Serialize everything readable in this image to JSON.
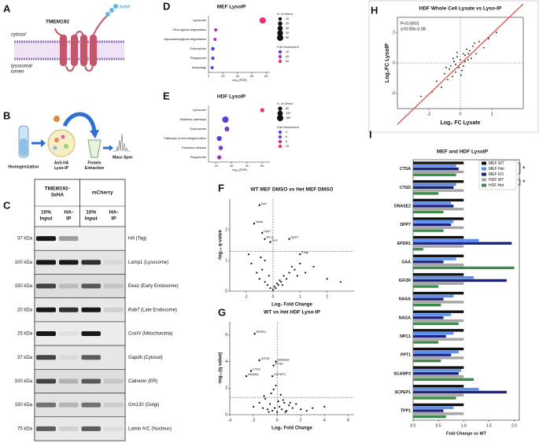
{
  "panel_labels": [
    "A",
    "B",
    "C",
    "D",
    "E",
    "F",
    "G",
    "H",
    "I"
  ],
  "schematic": {
    "protein": "TMEM192",
    "tag": "3xHA",
    "cytosol": "cytosol",
    "lumen": [
      "lysosomal",
      "lumen"
    ]
  },
  "workflow": {
    "steps": [
      [
        "Homogenization"
      ],
      [
        "Anti-HA",
        "Lyso-IP"
      ],
      [
        "Protein",
        "Extraction"
      ],
      [
        "Mass Spec"
      ]
    ]
  },
  "blot": {
    "groups": [
      [
        "TMEM192-",
        "3xHA"
      ],
      [
        "mCherry"
      ]
    ],
    "lanes": [
      [
        "10%",
        "Input"
      ],
      [
        "HA-",
        "IP"
      ],
      [
        "10%",
        "Input"
      ],
      [
        "HA-",
        "IP"
      ]
    ],
    "rows": [
      {
        "kda": "37 kDa",
        "label": "HA (Tag)"
      },
      {
        "kda": "100 kDa",
        "label": "Lamp1 (Lysosome)"
      },
      {
        "kda": "150 kDa",
        "label": "Eea1 (Early Endosome)"
      },
      {
        "kda": "20 kDa",
        "label": "Rab7 (Late Endosome)"
      },
      {
        "kda": "25 kDa",
        "label": "CoxIV (Mitochondria)"
      },
      {
        "kda": "37 kDa",
        "label": "Gapdh (Cytosol)"
      },
      {
        "kda": "100 kDa",
        "label": "Calnexin (ER)"
      },
      {
        "kda": "150 kDa",
        "label": "Gm130 (Golgi)"
      },
      {
        "kda": "75 kDa",
        "label": "Lamin A/C (Nucleus)"
      }
    ]
  },
  "chart_data": [
    {
      "type": "dot",
      "title": "MEF LysoIP",
      "categories": [
        "Lysosome",
        "Other glycan degradation",
        "Glycosaminoglycan degradation",
        "Endocytosis",
        "Phagosome",
        "Autophagy"
      ],
      "values": [
        75,
        10,
        9,
        6,
        6,
        5
      ],
      "sizes": [
        50,
        8,
        7,
        10,
        9,
        7
      ],
      "fold_enrichment": [
        60,
        45,
        40,
        10,
        10,
        8
      ],
      "xlabel": "-log₁₀(FDR)",
      "xlim": [
        0,
        85
      ],
      "xticks": [
        0,
        20,
        40,
        60,
        80
      ],
      "size_legend_title": "N. of Genes",
      "size_legend": [
        10,
        20,
        30,
        40,
        50
      ],
      "color_legend_title": "Fold Enrichment",
      "color_legend": [
        20,
        40,
        60
      ],
      "color_range": [
        "#5b3fd9",
        "#ee2f6b"
      ]
    },
    {
      "type": "dot",
      "title": "HDF LysoIP",
      "categories": [
        "Lysosome",
        "Metabolic pathways",
        "Endocytosis",
        "Pathways of neurodegeneration",
        "Parkinson disease",
        "Phagosome"
      ],
      "values": [
        50,
        26,
        27,
        22,
        23,
        22
      ],
      "sizes": [
        60,
        180,
        90,
        100,
        70,
        60
      ],
      "fold_enrichment": [
        10,
        4,
        5,
        4,
        5,
        6
      ],
      "xlabel": "-log₁₀(FDR)",
      "xlim": [
        15,
        55
      ],
      "xticks": [
        20,
        30,
        40,
        50
      ],
      "size_legend_title": "N. of Genes",
      "size_legend": [
        60,
        120,
        180
      ],
      "color_legend_title": "Fold Enrichment",
      "color_legend": [
        4,
        6,
        8,
        10
      ],
      "color_range": [
        "#5b3fd9",
        "#ee2f6b"
      ]
    },
    {
      "type": "volcano",
      "title": "WT MEF DMSO vs Het MEF DMSO",
      "xlabel": "Log₂ Fold Change",
      "ylabel": "-log₁₀ q-value",
      "xlim": [
        -1.6,
        3
      ],
      "xticks": [
        -1,
        0,
        1,
        2
      ],
      "ylim": [
        0,
        3
      ],
      "yticks": [
        0,
        1,
        2
      ],
      "threshold": 1.3,
      "vline": 0,
      "x": [
        -0.8,
        -0.6,
        -0.5,
        -0.4,
        -0.3,
        -0.2,
        -0.1,
        0,
        0.1,
        0.2,
        0.3,
        0.4,
        0.5,
        0.6,
        0.7,
        0.8,
        1,
        1.2,
        1.5,
        2,
        2.5,
        -0.9,
        -0.3,
        0.05,
        0.15,
        0.25,
        -0.15,
        0.35,
        -0.45,
        0.9
      ],
      "y": [
        0.9,
        0.6,
        0.4,
        0.7,
        0.3,
        0.2,
        0.1,
        0.05,
        0.1,
        0.2,
        0.3,
        0.5,
        0.4,
        0.6,
        0.8,
        0.7,
        0.9,
        0.6,
        0.8,
        0.4,
        0.3,
        1.2,
        1.0,
        0.15,
        0.25,
        0.35,
        0.5,
        0.2,
        1.1,
        0.5
      ],
      "labeled": {
        "x": [
          -0.5,
          -0.7,
          -0.4,
          -0.3,
          -0.1,
          0.6,
          1.0
        ],
        "y": [
          2.8,
          2.2,
          1.9,
          1.7,
          1.6,
          1.7,
          1.2
        ],
        "labels": [
          "Ups",
          "Naaa",
          "Dpp7",
          "Neu1",
          "Gns",
          "Epdr1",
          "Psap"
        ]
      }
    },
    {
      "type": "volcano",
      "title": "WT vs Het HDF Lyso-IP",
      "xlabel": "Log₂ Fold Change",
      "ylabel": "-log₁₀(q value)",
      "xlim": [
        -4,
        6.5
      ],
      "xticks": [
        -4,
        -2,
        0,
        2,
        4,
        6
      ],
      "ylim": [
        0,
        7
      ],
      "yticks": [
        0,
        2,
        4,
        6
      ],
      "threshold": 1.3,
      "vline": 0,
      "x": [
        -2,
        -1.5,
        -1.2,
        -1,
        -0.8,
        -0.6,
        -0.4,
        -0.2,
        0,
        0.2,
        0.4,
        0.6,
        0.8,
        1,
        1.3,
        1.6,
        2,
        2.5,
        3,
        4,
        -0.5,
        -0.3,
        0.1,
        0.3,
        0.5,
        -0.7,
        0.7,
        -1.1,
        1.1,
        -0.1
      ],
      "y": [
        0.6,
        0.9,
        0.5,
        1.2,
        0.4,
        0.8,
        0.3,
        0.5,
        0.2,
        0.6,
        0.4,
        0.9,
        0.3,
        0.7,
        0.5,
        0.8,
        0.4,
        0.3,
        0.5,
        0.6,
        1.6,
        1.9,
        1.0,
        1.5,
        1.1,
        0.2,
        0.2,
        1.4,
        0.9,
        2.2
      ],
      "labeled": {
        "x": [
          -1.9,
          -1.5,
          -0.1,
          -0.3,
          -2.2,
          -2.6,
          -0.4
        ],
        "y": [
          6.1,
          4.1,
          4.0,
          3.7,
          3.3,
          2.9,
          2.9
        ],
        "labels": [
          "EPDR1",
          "IGF2R",
          "MAN2B2",
          "CTSD",
          "CTSC",
          "MANBA",
          "SCPEP1"
        ]
      }
    },
    {
      "type": "scatter",
      "title": "HDF Whole Cell Lysate vs Lyso-IP",
      "xlabel": "Log₂ FC Lysate",
      "ylabel": "Log₂FC LysoIP",
      "xlim": [
        -4,
        4
      ],
      "xticks": [
        -2,
        0,
        2
      ],
      "ylim": [
        -3,
        3
      ],
      "yticks": [
        -2,
        0,
        2
      ],
      "hline": 0,
      "vline": 0,
      "stats": [
        "P<0.0001",
        "y=0.99x-0.08"
      ],
      "fit": {
        "slope": 0.99,
        "intercept": -0.08
      },
      "fit_color": "#e0463a",
      "x": [
        -1.5,
        -1.2,
        -1,
        -0.8,
        -0.6,
        -0.5,
        -0.4,
        -0.3,
        -0.2,
        -0.1,
        0,
        0.1,
        0.2,
        0.3,
        0.4,
        0.5,
        0.6,
        0.7,
        0.8,
        1,
        1.2,
        1.5,
        -0.7,
        -0.3,
        0.2,
        0.5,
        -1.8,
        1.8,
        0.9,
        -0.9,
        0.3,
        -0.2,
        2.3,
        -2.5,
        0.05,
        -0.45
      ],
      "y": [
        -1.2,
        -1.6,
        -0.7,
        -1.1,
        -0.2,
        -0.9,
        0.1,
        -0.6,
        0.4,
        -0.3,
        0.2,
        -0.5,
        0.6,
        0.1,
        0.9,
        0.2,
        0.8,
        0.3,
        1.1,
        0.6,
        1.4,
        1.0,
        -0.4,
        -0.1,
        -0.2,
        0.6,
        -1.9,
        1.6,
        1.3,
        -0.3,
        0.5,
        0.7,
        2.0,
        -2.2,
        -0.8,
        0.3
      ]
    },
    {
      "type": "hbar",
      "title": "MEF and HDF LysoIP",
      "xlabel": "Fold Change vs WT",
      "categories": [
        "CTSA",
        "CTSD",
        "DNASE2",
        "DPP7",
        "EPDR1",
        "GAA",
        "IGF2R",
        "NAAA",
        "NAGA",
        "NPC1",
        "PPT1",
        "SCAMP3",
        "SCPEP1",
        "TPP1"
      ],
      "xlim": [
        0,
        2.1
      ],
      "xticks": [
        {
          "value": 0,
          "label": "0.0"
        },
        {
          "value": 0.5,
          "label": "0.5"
        },
        {
          "value": 1,
          "label": "1.0"
        },
        {
          "value": 1.5,
          "label": "1.5"
        },
        {
          "value": 2,
          "label": "2.0"
        }
      ],
      "series": [
        {
          "name": "MEF WT",
          "color": "#111111",
          "values": [
            1,
            1,
            1,
            1,
            1,
            1,
            1,
            1,
            1,
            1,
            1,
            1,
            1,
            1
          ]
        },
        {
          "name": "MEF Het",
          "color": "#5b8ff0",
          "values": [
            0.85,
            0.85,
            0.75,
            0.8,
            1.3,
            0.85,
            1.2,
            0.8,
            0.75,
            0.8,
            0.9,
            0.95,
            1.3,
            0.8
          ]
        },
        {
          "name": "MEF KO",
          "color": "#1c237e",
          "values": [
            0.9,
            0.8,
            0.8,
            0.75,
            1.95,
            0.6,
            1.85,
            0.6,
            0.6,
            0.65,
            0.75,
            0.9,
            1.85,
            0.6
          ]
        },
        {
          "name": "HDF WT",
          "color": "#a6a6a6",
          "values": [
            1,
            1,
            1,
            1,
            1,
            1,
            1,
            1,
            1,
            1,
            1,
            1,
            1,
            1
          ]
        },
        {
          "name": "HDF Het",
          "color": "#3f8a4a",
          "values": [
            0.85,
            0.5,
            0.6,
            0.6,
            0.2,
            2.0,
            0.5,
            0.55,
            0.9,
            0.5,
            0.55,
            1.2,
            0.85,
            0.65
          ]
        }
      ],
      "significance": [
        "*",
        "*"
      ]
    }
  ]
}
